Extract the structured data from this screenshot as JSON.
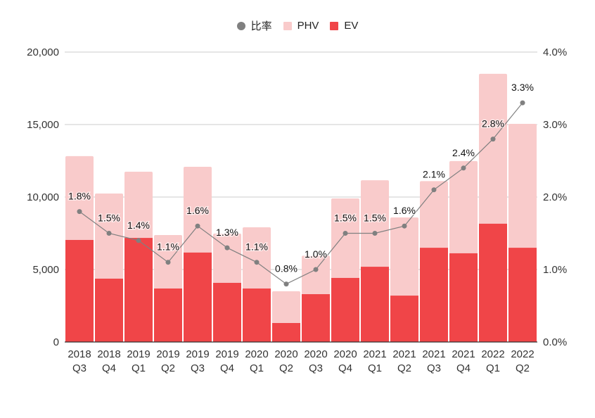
{
  "chart_data": {
    "type": "bar",
    "stacked": true,
    "title": "",
    "legend_position": "top",
    "legend": [
      {
        "name": "比率",
        "marker": "dot",
        "color": "#808080"
      },
      {
        "name": "PHV",
        "marker": "square",
        "color": "#f9cbcb"
      },
      {
        "name": "EV",
        "marker": "square",
        "color": "#f04548"
      }
    ],
    "categories": [
      [
        "2018",
        "Q3"
      ],
      [
        "2018",
        "Q4"
      ],
      [
        "2019",
        "Q1"
      ],
      [
        "2019",
        "Q2"
      ],
      [
        "2019",
        "Q3"
      ],
      [
        "2019",
        "Q4"
      ],
      [
        "2020",
        "Q1"
      ],
      [
        "2020",
        "Q2"
      ],
      [
        "2020",
        "Q3"
      ],
      [
        "2020",
        "Q4"
      ],
      [
        "2021",
        "Q1"
      ],
      [
        "2021",
        "Q2"
      ],
      [
        "2021",
        "Q3"
      ],
      [
        "2021",
        "Q4"
      ],
      [
        "2022",
        "Q1"
      ],
      [
        "2022",
        "Q2"
      ]
    ],
    "series": [
      {
        "name": "EV",
        "axis": "left",
        "type": "bar",
        "color": "#f04548",
        "values": [
          7040,
          4370,
          7180,
          3690,
          6170,
          4080,
          3690,
          1310,
          3300,
          4420,
          5190,
          3200,
          6500,
          6120,
          8160,
          6500
        ]
      },
      {
        "name": "PHV",
        "axis": "left",
        "type": "bar",
        "color": "#f9cbcb",
        "values": [
          5780,
          5870,
          4570,
          3690,
          5920,
          3400,
          4220,
          2190,
          2650,
          5480,
          5970,
          5390,
          4600,
          6360,
          10340,
          8550
        ]
      },
      {
        "name": "比率",
        "axis": "right",
        "type": "line",
        "color": "#808080",
        "values": [
          1.8,
          1.5,
          1.4,
          1.1,
          1.6,
          1.3,
          1.1,
          0.8,
          1.0,
          1.5,
          1.5,
          1.6,
          2.1,
          2.4,
          2.8,
          3.3
        ],
        "labels": [
          "1.8%",
          "1.5%",
          "1.4%",
          "1.1%",
          "1.6%",
          "1.3%",
          "1.1%",
          "0.8%",
          "1.0%",
          "1.5%",
          "1.5%",
          "1.6%",
          "2.1%",
          "2.4%",
          "2.8%",
          "3.3%"
        ]
      }
    ],
    "y_left": {
      "ylim": [
        0,
        20000
      ],
      "ticks": [
        0,
        5000,
        10000,
        15000,
        20000
      ],
      "tick_labels": [
        "0",
        "5,000",
        "10,000",
        "15,000",
        "20,000"
      ]
    },
    "y_right": {
      "ylim": [
        0,
        4.0
      ],
      "ticks": [
        0,
        1,
        2,
        3,
        4
      ],
      "tick_labels": [
        "0.0%",
        "1.0%",
        "2.0%",
        "3.0%",
        "4.0%"
      ]
    },
    "grid": true,
    "xlabel": "",
    "ylabel": ""
  }
}
